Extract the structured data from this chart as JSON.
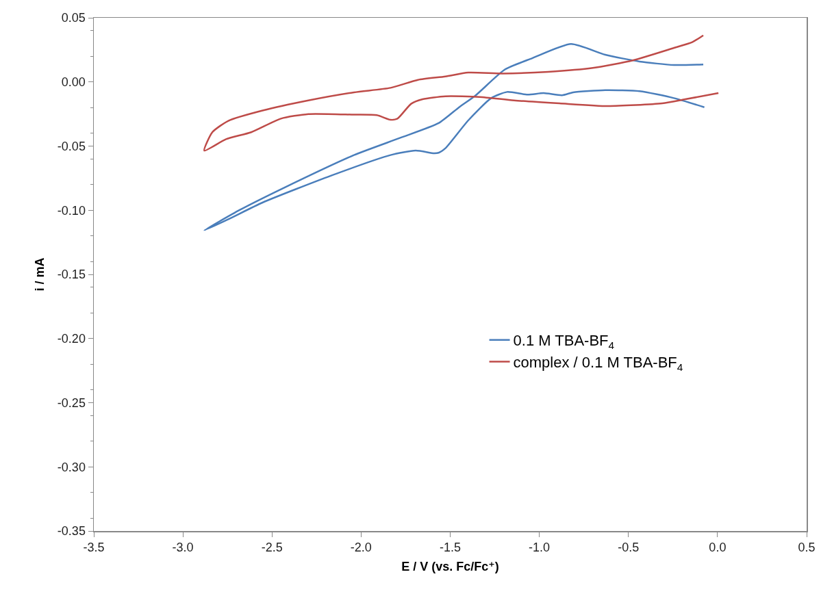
{
  "chart_data": {
    "type": "line",
    "xlabel": "E / V (vs. Fc/Fc⁺)",
    "ylabel": "i / mA",
    "xlim": [
      -3.5,
      0.5
    ],
    "xticks": [
      -3.5,
      {
        "value": -3,
        "label": "-3.0"
      },
      -2.5,
      {
        "value": -2,
        "label": "-2.0"
      },
      -1.5,
      {
        "value": -1,
        "label": "-1.0"
      },
      -0.5,
      {
        "value": 0,
        "label": "0.0"
      },
      0.5
    ],
    "ylim": [
      -0.35,
      0.05
    ],
    "yticks": [
      {
        "value": -0.35,
        "label": "-0.35"
      },
      {
        "value": -0.3,
        "label": "-0.30"
      },
      {
        "value": -0.25,
        "label": "-0.25"
      },
      {
        "value": -0.2,
        "label": "-0.20"
      },
      {
        "value": -0.15,
        "label": "-0.15"
      },
      {
        "value": -0.1,
        "label": "-0.10"
      },
      {
        "value": -0.05,
        "label": "-0.05"
      },
      {
        "value": 0,
        "label": "0.00"
      },
      {
        "value": 0.05,
        "label": "0.05"
      }
    ],
    "grid": false,
    "legend": "right",
    "marker": "none",
    "line_style": "solid",
    "series": [
      {
        "name": "0.1 M TBA-BF$_{4}$",
        "color": "#4a7ebb",
        "x": [
          -0.074,
          -0.245,
          -0.437,
          -0.63,
          -0.81,
          -0.873,
          -0.976,
          -1.065,
          -1.181,
          -1.27,
          -1.399,
          -1.527,
          -1.565,
          -1.591,
          -1.694,
          -1.835,
          -2.168,
          -2.553,
          -2.745,
          -2.88,
          -2.68,
          -2.424,
          -2.04,
          -1.783,
          -1.565,
          -1.45,
          -1.36,
          -1.193,
          -1.04,
          -0.822,
          -0.63,
          -0.437,
          -0.245,
          -0.08
        ],
        "values": [
          -0.0197,
          -0.0126,
          -0.0072,
          -0.0064,
          -0.0081,
          -0.0104,
          -0.0087,
          -0.0099,
          -0.0078,
          -0.0126,
          -0.03,
          -0.0517,
          -0.0552,
          -0.0556,
          -0.0535,
          -0.057,
          -0.073,
          -0.094,
          -0.107,
          -0.1157,
          -0.0997,
          -0.0819,
          -0.057,
          -0.0437,
          -0.0321,
          -0.0197,
          -0.0108,
          0.0097,
          0.0185,
          0.0296,
          0.0212,
          0.0159,
          0.0132,
          0.0136
        ]
      },
      {
        "name": "complex / 0.1 M TBA-BF$_{4}$",
        "color": "#be4b48",
        "x": [
          0.005,
          -0.181,
          -0.31,
          -0.617,
          -0.887,
          -1.142,
          -1.335,
          -1.527,
          -1.655,
          -1.719,
          -1.796,
          -1.835,
          -1.912,
          -2.04,
          -2.296,
          -2.45,
          -2.617,
          -2.758,
          -2.88,
          -2.835,
          -2.745,
          -2.553,
          -2.296,
          -2.04,
          -1.835,
          -1.681,
          -1.527,
          -1.399,
          -1.207,
          -0.95,
          -0.7,
          -0.476,
          -0.245,
          -0.142,
          -0.08
        ],
        "values": [
          -0.0087,
          -0.0135,
          -0.0167,
          -0.0188,
          -0.0167,
          -0.0144,
          -0.0117,
          -0.0112,
          -0.0135,
          -0.017,
          -0.0286,
          -0.0295,
          -0.0259,
          -0.0255,
          -0.025,
          -0.0286,
          -0.0392,
          -0.0446,
          -0.0535,
          -0.0392,
          -0.0303,
          -0.0223,
          -0.0144,
          -0.0081,
          -0.0046,
          0.0016,
          0.0043,
          0.0073,
          0.0066,
          0.0079,
          0.0109,
          0.0168,
          0.0265,
          0.031,
          0.0363
        ]
      }
    ]
  }
}
